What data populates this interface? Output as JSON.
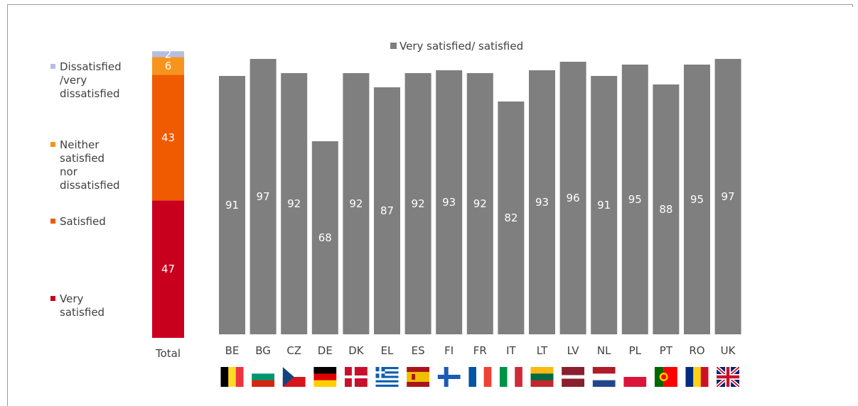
{
  "chart_data": [
    {
      "type": "bar",
      "stacked": true,
      "categories": [
        "Total"
      ],
      "series": [
        {
          "name": "Very satisfied",
          "values": [
            47
          ],
          "color": "#c8001e"
        },
        {
          "name": "Satisfied",
          "values": [
            43
          ],
          "color": "#f05a00"
        },
        {
          "name": "Neither satisfied nor dissatisfied",
          "values": [
            6
          ],
          "color": "#f7941d"
        },
        {
          "name": "Dissatisfied /very dissatisfied",
          "values": [
            2
          ],
          "color": "#b4bfe0"
        }
      ],
      "legend_lines": [
        [
          "Dissatisfied",
          "/very",
          "dissatisfied"
        ],
        [
          "Neither",
          "satisfied",
          "nor",
          "dissatisfied"
        ],
        [
          "Satisfied"
        ],
        [
          "Very",
          "satisfied"
        ]
      ],
      "legend": "left"
    },
    {
      "type": "bar",
      "categories": [
        "BE",
        "BG",
        "CZ",
        "DE",
        "DK",
        "EL",
        "ES",
        "FI",
        "FR",
        "IT",
        "LT",
        "LV",
        "NL",
        "PL",
        "PT",
        "RO",
        "UK"
      ],
      "series": [
        {
          "name": "Very satisfied/ satisfied",
          "values": [
            91,
            97,
            92,
            68,
            92,
            87,
            92,
            93,
            92,
            82,
            93,
            96,
            91,
            95,
            88,
            95,
            97
          ],
          "color": "#7f7f7f"
        }
      ],
      "ylim": [
        0,
        100
      ],
      "grid": false,
      "legend": "top"
    }
  ],
  "flags": [
    "belgium-flag",
    "bulgaria-flag",
    "czechia-flag",
    "germany-flag",
    "denmark-flag",
    "greece-flag",
    "spain-flag",
    "finland-flag",
    "france-flag",
    "italy-flag",
    "lithuania-flag",
    "latvia-flag",
    "netherlands-flag",
    "poland-flag",
    "portugal-flag",
    "romania-flag",
    "uk-flag"
  ]
}
